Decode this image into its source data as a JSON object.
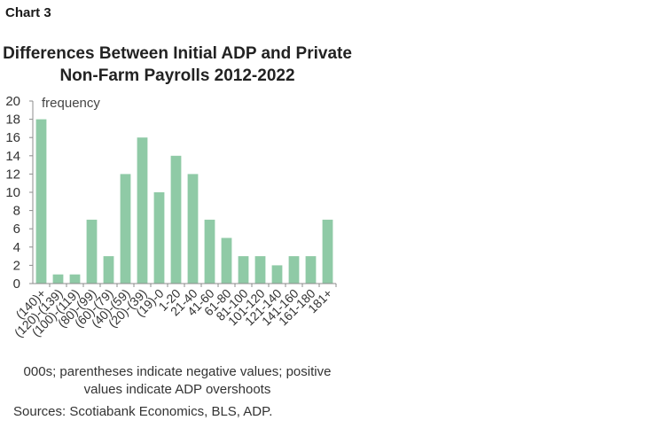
{
  "header": {
    "chart_label": "Chart 3"
  },
  "chart_data": {
    "type": "bar",
    "title": "Differences Between Initial ADP and Private Non-Farm Payrolls 2012-2022",
    "title_lines": [
      "Differences Between Initial ADP and Private",
      "Non-Farm Payrolls 2012-2022"
    ],
    "ylabel": "frequency",
    "xlabel": "",
    "ylim": [
      0,
      20
    ],
    "yticks": [
      0,
      2,
      4,
      6,
      8,
      10,
      12,
      14,
      16,
      18,
      20
    ],
    "categories": [
      "(140)+",
      "(120)-(139)",
      "(100)-(119)",
      "(80)-(99)",
      "(60)-(79)",
      "(40)-(59)",
      "(20)-(39)",
      "(19)-0",
      "1-20",
      "21-40",
      "41-60",
      "61-80",
      "81-100",
      "101-120",
      "121-140",
      "141-160",
      "161-180",
      "181+"
    ],
    "values": [
      18,
      1,
      1,
      7,
      3,
      12,
      16,
      10,
      14,
      12,
      7,
      5,
      3,
      3,
      2,
      3,
      3,
      7
    ],
    "grid": false,
    "legend": "none",
    "bar_color": "#8fcaa6"
  },
  "notes": {
    "line1": "000s; parentheses indicate negative values; positive",
    "line2": "values indicate ADP overshoots"
  },
  "source": "Sources: Scotiabank Economics, BLS, ADP."
}
